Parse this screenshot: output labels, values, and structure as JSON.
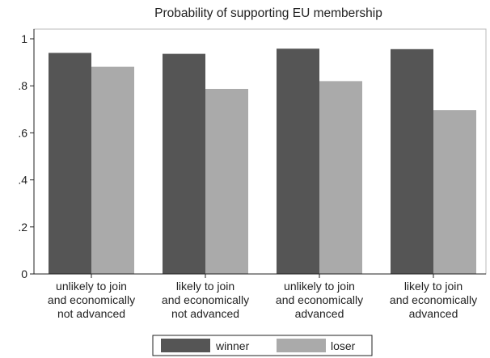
{
  "chart_data": {
    "type": "bar",
    "title": "Probability of supporting EU membership",
    "xlabel": "",
    "ylabel": "",
    "ylim": [
      0,
      1
    ],
    "yticks": [
      0,
      0.2,
      0.4,
      0.6,
      0.8,
      1
    ],
    "ytick_labels": [
      "0",
      ".2",
      ".4",
      ".6",
      ".8",
      "1"
    ],
    "grid": false,
    "legend_position": "bottom",
    "categories": [
      [
        "unlikely to join",
        "and economically",
        "not advanced"
      ],
      [
        "likely to join",
        "and economically",
        "not advanced"
      ],
      [
        "unlikely to join",
        "and economically",
        "advanced"
      ],
      [
        "likely to join",
        "and economically",
        "advanced"
      ]
    ],
    "series": [
      {
        "name": "winner",
        "color": "#555555",
        "values": [
          0.94,
          0.936,
          0.958,
          0.956
        ]
      },
      {
        "name": "loser",
        "color": "#aaaaaa",
        "values": [
          0.881,
          0.787,
          0.82,
          0.697
        ]
      }
    ]
  }
}
